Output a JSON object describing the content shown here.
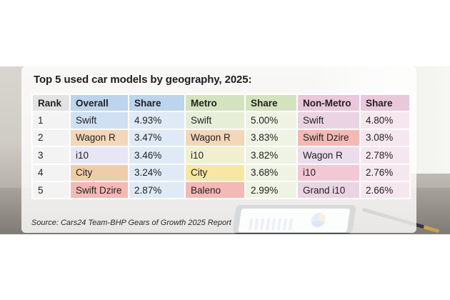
{
  "title": "Top 5 used car models by geography, 2025:",
  "source": "Source: Cars24 Team-BHP Gears of Growth 2025 Report",
  "chart_data": {
    "type": "table",
    "title": "Top 5 used car models by geography, 2025:",
    "columns": [
      "Rank",
      "Overall",
      "Share",
      "Metro",
      "Share",
      "Non-Metro",
      "Share"
    ],
    "rows": [
      [
        "1",
        "Swift",
        "4.93%",
        "Swift",
        "5.00%",
        "Swift",
        "4.80%"
      ],
      [
        "2",
        "Wagon R",
        "3.47%",
        "Wagon R",
        "3.83%",
        "Swift Dzire",
        "3.08%"
      ],
      [
        "3",
        "i10",
        "3.46%",
        "i10",
        "3.82%",
        "Wagon R",
        "2.78%"
      ],
      [
        "4",
        "City",
        "3.24%",
        "City",
        "3.68%",
        "i10",
        "2.76%"
      ],
      [
        "5",
        "Swift Dzire",
        "2.87%",
        "Baleno",
        "2.99%",
        "Grand i10",
        "2.66%"
      ]
    ]
  },
  "colors": {
    "rank_header": "#e3e3e3",
    "rank_cell": "#f3f3f3",
    "overall_header": "#bcd4ec",
    "metro_header": "#d4e3bf",
    "nonmetro_header": "#e8c8da",
    "model_swift": "#cfe0f3",
    "model_wagon_r": "#f4d6b9",
    "model_i10": "#e6e6f4",
    "model_city": "#eecdaa",
    "model_swift_dzire": "#f4b9b4",
    "model_baleno": "#f4b9b4",
    "metro_swift": "#e6eed8",
    "metro_wagon_r": "#f4d6b9",
    "metro_i10": "#f0f0cf",
    "metro_city": "#f9e6a3",
    "nonmetro_swift": "#ead4e3",
    "nonmetro_swift_dzire": "#f4b9b4",
    "nonmetro_wagon_r": "#ecdcec",
    "nonmetro_i10": "#f2c7d6",
    "nonmetro_grand_i10": "#ead4e3",
    "share_overall": "#dfeaf6",
    "share_metro": "#eef3e3",
    "share_nonmetro": "#f6e7ee"
  }
}
